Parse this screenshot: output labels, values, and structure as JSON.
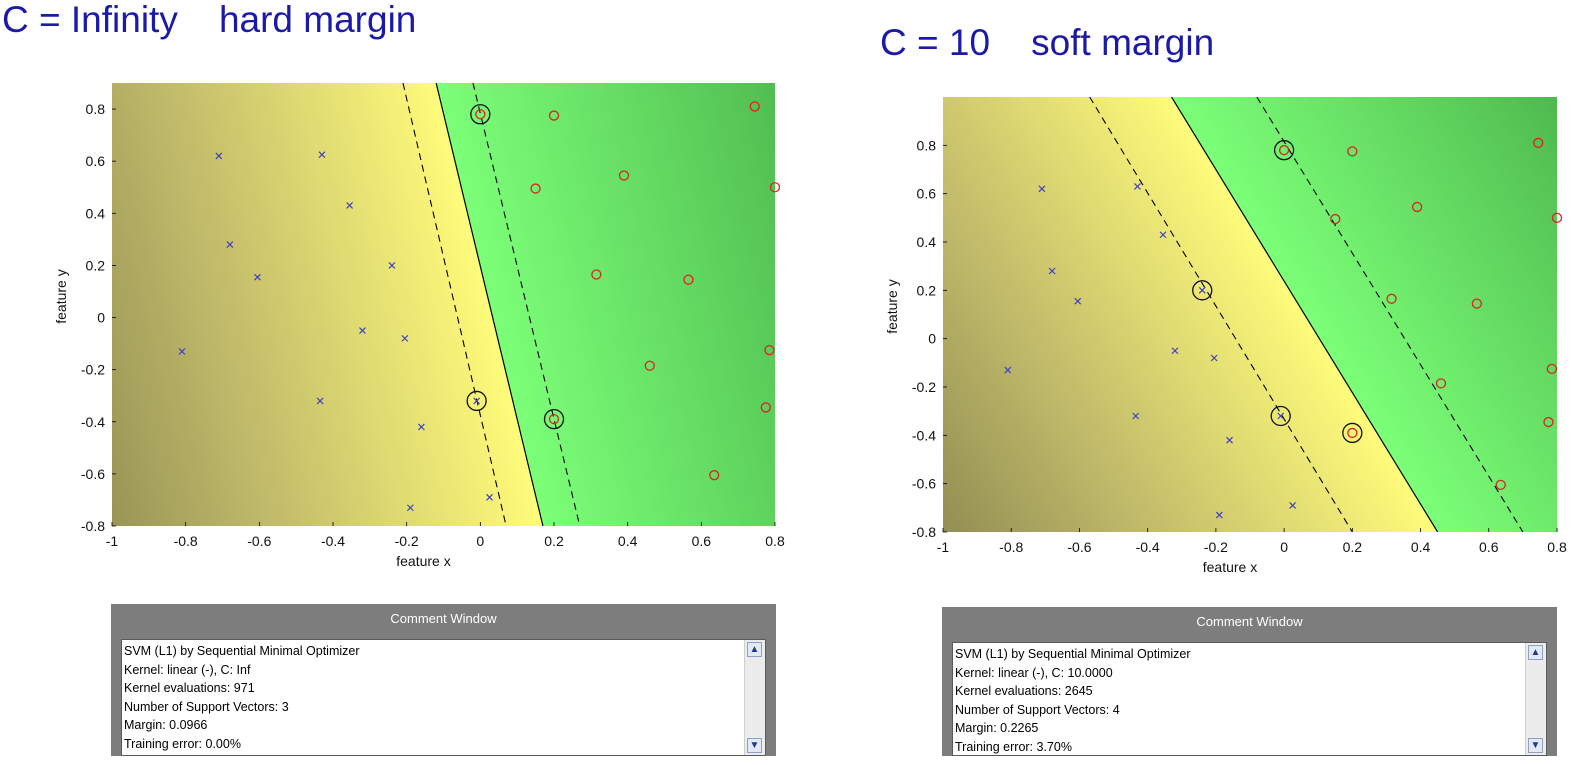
{
  "panels": [
    {
      "title": "C = Infinity    hard margin",
      "chart_data": {
        "type": "scatter",
        "title": "C = Infinity    hard margin",
        "xlabel": "feature x",
        "ylabel": "feature y",
        "xlim": [
          -1,
          0.8
        ],
        "ylim": [
          -0.8,
          0.9
        ],
        "xticks": [
          -1,
          -0.8,
          -0.6,
          -0.4,
          -0.2,
          0,
          0.2,
          0.4,
          0.6,
          0.8
        ],
        "xtick_labels": [
          "-1",
          "-0.8",
          "-0.6",
          "-0.4",
          "-0.2",
          "0",
          "0.2",
          "0.4",
          "0.6",
          "0.8"
        ],
        "yticks": [
          -0.8,
          -0.6,
          -0.4,
          -0.2,
          0,
          0.2,
          0.4,
          0.6,
          0.8
        ],
        "ytick_labels": [
          "-0.8",
          "-0.6",
          "-0.4",
          "-0.2",
          "0",
          "0.2",
          "0.4",
          "0.6",
          "0.8"
        ],
        "grid": false,
        "series": [
          {
            "marker": "x",
            "color": "#4040c0",
            "points": [
              [
                -0.71,
                0.62
              ],
              [
                -0.43,
                0.625
              ],
              [
                -0.355,
                0.43
              ],
              [
                -0.68,
                0.28
              ],
              [
                -0.605,
                0.155
              ],
              [
                -0.24,
                0.2
              ],
              [
                -0.32,
                -0.05
              ],
              [
                -0.205,
                -0.08
              ],
              [
                -0.81,
                -0.13
              ],
              [
                -0.435,
                -0.32
              ],
              [
                -0.16,
                -0.42
              ],
              [
                -0.19,
                -0.73
              ],
              [
                0.025,
                -0.69
              ],
              [
                -0.01,
                -0.32
              ]
            ]
          },
          {
            "marker": "o",
            "color": "#dd2222",
            "points": [
              [
                0.0,
                0.78
              ],
              [
                0.2,
                0.775
              ],
              [
                0.745,
                0.81
              ],
              [
                0.8,
                0.5
              ],
              [
                0.15,
                0.495
              ],
              [
                0.39,
                0.545
              ],
              [
                0.315,
                0.165
              ],
              [
                0.565,
                0.145
              ],
              [
                0.785,
                -0.125
              ],
              [
                0.46,
                -0.185
              ],
              [
                0.775,
                -0.345
              ],
              [
                0.2,
                -0.39
              ],
              [
                0.635,
                -0.605
              ]
            ]
          }
        ],
        "support_vectors": [
          [
            0.0,
            0.78
          ],
          [
            -0.01,
            -0.32
          ],
          [
            0.2,
            -0.39
          ]
        ],
        "decision_boundary": [
          [
            -0.12,
            0.9
          ],
          [
            0.17,
            -0.8
          ]
        ],
        "margin_lines": [
          [
            [
              -0.21,
              0.9
            ],
            [
              0.07,
              -0.8
            ]
          ],
          [
            [
              -0.02,
              0.9
            ],
            [
              0.27,
              -0.8
            ]
          ]
        ]
      },
      "comment": {
        "header": "Comment Window",
        "lines": [
          "SVM (L1) by Sequential Minimal Optimizer",
          "Kernel: linear (-), C: Inf",
          "Kernel evaluations: 971",
          "Number of Support Vectors: 3",
          "Margin: 0.0966",
          "Training error: 0.00%"
        ]
      }
    },
    {
      "title": "C = 10    soft margin",
      "chart_data": {
        "type": "scatter",
        "title": "C = 10    soft margin",
        "xlabel": "feature x",
        "ylabel": "feature y",
        "xlim": [
          -1,
          0.8
        ],
        "ylim": [
          -0.8,
          1.0
        ],
        "xticks": [
          -1,
          -0.8,
          -0.6,
          -0.4,
          -0.2,
          0,
          0.2,
          0.4,
          0.6,
          0.8
        ],
        "xtick_labels": [
          "-1",
          "-0.8",
          "-0.6",
          "-0.4",
          "-0.2",
          "0",
          "0.2",
          "0.4",
          "0.6",
          "0.8"
        ],
        "yticks": [
          -0.8,
          -0.6,
          -0.4,
          -0.2,
          0,
          0.2,
          0.4,
          0.6,
          0.8
        ],
        "ytick_labels": [
          "-0.8",
          "-0.6",
          "-0.4",
          "-0.2",
          "0",
          "0.2",
          "0.4",
          "0.6",
          "0.8"
        ],
        "grid": false,
        "series": [
          {
            "marker": "x",
            "color": "#4040c0",
            "points": [
              [
                -0.71,
                0.62
              ],
              [
                -0.43,
                0.63
              ],
              [
                -0.355,
                0.43
              ],
              [
                -0.68,
                0.28
              ],
              [
                -0.605,
                0.155
              ],
              [
                -0.24,
                0.2
              ],
              [
                -0.32,
                -0.05
              ],
              [
                -0.205,
                -0.08
              ],
              [
                -0.81,
                -0.13
              ],
              [
                -0.435,
                -0.32
              ],
              [
                -0.16,
                -0.42
              ],
              [
                -0.19,
                -0.73
              ],
              [
                0.025,
                -0.69
              ],
              [
                -0.01,
                -0.32
              ]
            ]
          },
          {
            "marker": "o",
            "color": "#dd2222",
            "points": [
              [
                0.0,
                0.78
              ],
              [
                0.2,
                0.775
              ],
              [
                0.745,
                0.81
              ],
              [
                0.8,
                0.5
              ],
              [
                0.15,
                0.495
              ],
              [
                0.39,
                0.545
              ],
              [
                0.315,
                0.165
              ],
              [
                0.565,
                0.145
              ],
              [
                0.785,
                -0.125
              ],
              [
                0.46,
                -0.185
              ],
              [
                0.775,
                -0.345
              ],
              [
                0.2,
                -0.39
              ],
              [
                0.635,
                -0.605
              ]
            ]
          }
        ],
        "support_vectors": [
          [
            0.0,
            0.78
          ],
          [
            -0.24,
            0.2
          ],
          [
            -0.01,
            -0.32
          ],
          [
            0.2,
            -0.39
          ]
        ],
        "decision_boundary": [
          [
            -0.33,
            1.0
          ],
          [
            0.45,
            -0.8
          ]
        ],
        "margin_lines": [
          [
            [
              -0.57,
              1.0
            ],
            [
              0.2,
              -0.8
            ]
          ],
          [
            [
              -0.08,
              1.0
            ],
            [
              0.7,
              -0.8
            ]
          ]
        ]
      },
      "comment": {
        "header": "Comment Window",
        "lines": [
          "SVM (L1) by Sequential Minimal Optimizer",
          "Kernel: linear (-), C: 10.0000",
          "Kernel evaluations: 2645",
          "Number of Support Vectors: 4",
          "Margin: 0.2265",
          "Training error: 3.70%"
        ]
      }
    }
  ]
}
